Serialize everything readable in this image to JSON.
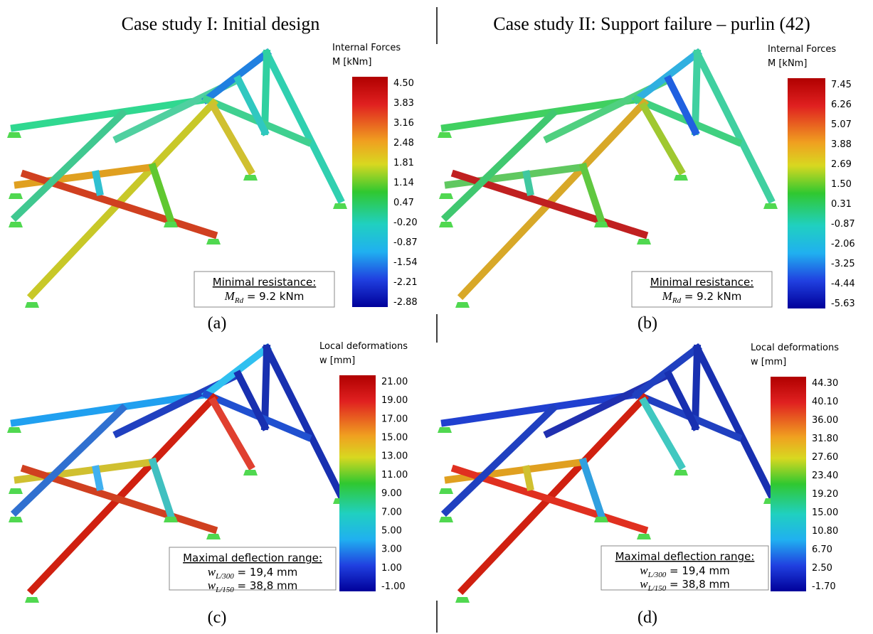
{
  "header": {
    "left": "Case study I: Initial design",
    "right": "Case study II: Support failure – purlin (42)"
  },
  "panels": [
    {
      "label": "(a)",
      "legend": {
        "title": "Internal Forces",
        "unit": "M [kNm]",
        "ticks": [
          "4.50",
          "3.83",
          "3.16",
          "2.48",
          "1.81",
          "1.14",
          "0.47",
          "-0.20",
          "-0.87",
          "-1.54",
          "-2.21",
          "-2.88"
        ]
      },
      "note": {
        "heading": "Minimal resistance:",
        "lines": [
          {
            "symbol": "M",
            "subscript": "Rd",
            "text": " = 9.2 kNm"
          }
        ]
      }
    },
    {
      "label": "(b)",
      "legend": {
        "title": "Internal Forces",
        "unit": "M [kNm]",
        "ticks": [
          "7.45",
          "6.26",
          "5.07",
          "3.88",
          "2.69",
          "1.50",
          "0.31",
          "-0.87",
          "-2.06",
          "-3.25",
          "-4.44",
          "-5.63"
        ]
      },
      "note": {
        "heading": "Minimal resistance:",
        "lines": [
          {
            "symbol": "M",
            "subscript": "Rd",
            "text": " = 9.2 kNm"
          }
        ]
      }
    },
    {
      "label": "(c)",
      "legend": {
        "title": "Local deformations",
        "unit": "w [mm]",
        "ticks": [
          "21.00",
          "19.00",
          "17.00",
          "15.00",
          "13.00",
          "11.00",
          "9.00",
          "7.00",
          "5.00",
          "3.00",
          "1.00",
          "-1.00"
        ]
      },
      "note": {
        "heading": "Maximal deflection range:",
        "lines": [
          {
            "symbol": "w",
            "subscript": "L/300",
            "text": " = 19,4 mm"
          },
          {
            "symbol": "w",
            "subscript": "L/150",
            "text": " = 38,8 mm"
          }
        ]
      }
    },
    {
      "label": "(d)",
      "legend": {
        "title": "Local deformations",
        "unit": "w [mm]",
        "ticks": [
          "44.30",
          "40.10",
          "36.00",
          "31.80",
          "27.60",
          "23.40",
          "19.20",
          "15.00",
          "10.80",
          "6.70",
          "2.50",
          "-1.70"
        ]
      },
      "note": {
        "heading": "Maximal deflection range:",
        "lines": [
          {
            "symbol": "w",
            "subscript": "L/300",
            "text": " = 19,4 mm"
          },
          {
            "symbol": "w",
            "subscript": "L/150",
            "text": " = 38,8 mm"
          }
        ]
      }
    }
  ]
}
